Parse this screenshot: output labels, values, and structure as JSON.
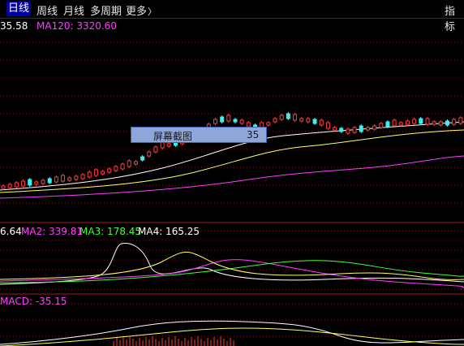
{
  "tabs": [
    {
      "label": "日线",
      "active": true
    },
    {
      "label": "周线",
      "active": false
    },
    {
      "label": "月线",
      "active": false
    },
    {
      "label": "多周期",
      "active": false
    },
    {
      "label": "更多",
      "active": false
    }
  ],
  "more_arrow": "〉",
  "indicator_button": "指标",
  "main_panel": {
    "ma_truncated_value": "35.58",
    "ma120_label": "MA120: 3320.60"
  },
  "overlay": {
    "title": "屏幕截图",
    "value": "35"
  },
  "volume_panel": {
    "ma1_truncated": "6.64",
    "ma2": "MA2: 339.81",
    "ma3": "MA3: 178.45",
    "ma4": "MA4: 165.25"
  },
  "macd_panel": {
    "label": "MACD: -35.15"
  },
  "colors": {
    "up": "#ff3c3c",
    "down": "#3cf0f0",
    "ma_white": "#ffffff",
    "ma_yellow": "#ffff66",
    "ma_magenta": "#ff3cff",
    "ma_green": "#3cff3c",
    "grid": "#8a1010"
  }
}
